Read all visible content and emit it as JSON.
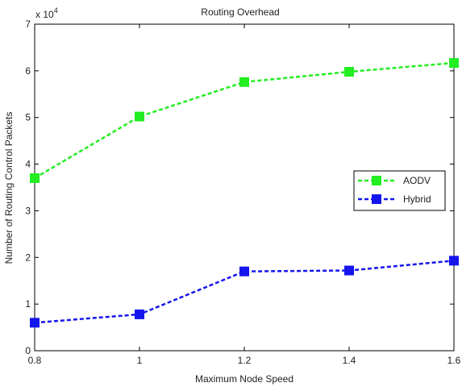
{
  "chart_data": {
    "type": "line",
    "title": "Routing Overhead",
    "xlabel": "Maximum Node Speed",
    "ylabel": "Number of Routing Control Packets",
    "y_multiplier": "x 10",
    "y_exponent": "4",
    "x": [
      0.8,
      1.0,
      1.2,
      1.4,
      1.6
    ],
    "xlim": [
      0.8,
      1.6
    ],
    "ylim": [
      0,
      70000
    ],
    "x_ticks": [
      "0.8",
      "1",
      "1.2",
      "1.4",
      "1.6"
    ],
    "y_ticks": [
      "0",
      "1",
      "2",
      "3",
      "4",
      "5",
      "6",
      "7"
    ],
    "y_tick_values": [
      0,
      10000,
      20000,
      30000,
      40000,
      50000,
      60000,
      70000
    ],
    "grid": false,
    "legend_position": "right",
    "series": [
      {
        "name": "AODV",
        "color": "#22ee22",
        "marker": "square",
        "line_style": "dashed",
        "values": [
          37000,
          50200,
          57600,
          59800,
          61700
        ]
      },
      {
        "name": "Hybrid",
        "color": "#1515ee",
        "marker": "square",
        "line_style": "dashed",
        "values": [
          6000,
          7800,
          17000,
          17200,
          19300
        ]
      }
    ]
  }
}
